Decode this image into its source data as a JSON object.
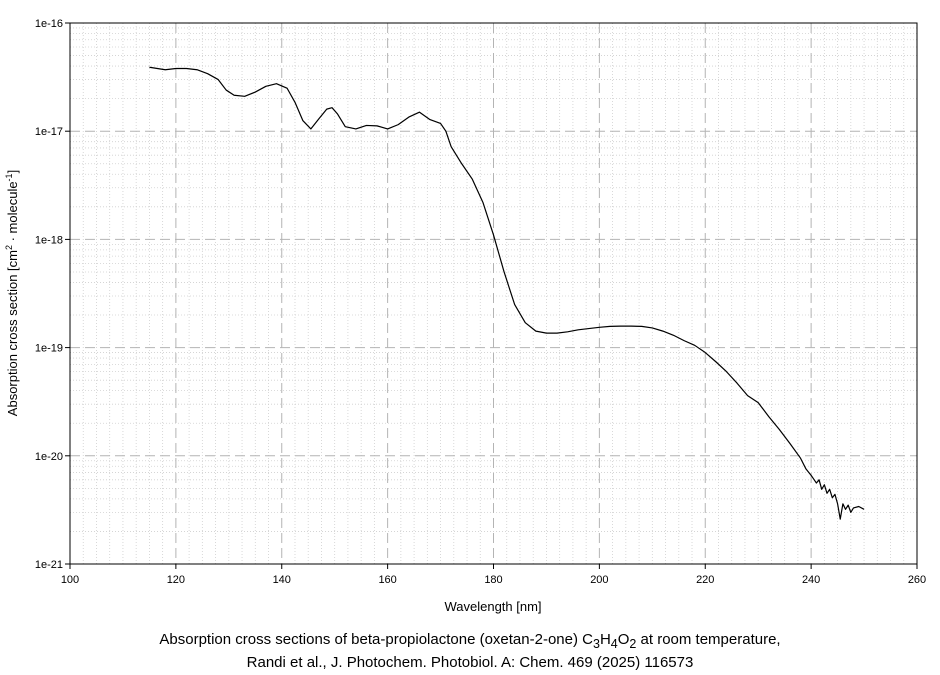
{
  "chart_data": {
    "type": "line",
    "title": "",
    "xlabel": "Wavelength [nm]",
    "ylabel": {
      "prefix": "Absorption cross section [cm",
      "sup1": "2",
      "middle": " · molecule",
      "sup2": "-1",
      "suffix": "]"
    },
    "xlim": [
      100,
      260
    ],
    "ylim": [
      1e-21,
      1e-16
    ],
    "yscale": "log",
    "grid": true,
    "legend": "none",
    "x_ticks": [
      100,
      120,
      140,
      160,
      180,
      200,
      220,
      240,
      260
    ],
    "y_ticks": [
      {
        "value": 1e-21,
        "label": "1e-21"
      },
      {
        "value": 1e-20,
        "label": "1e-20"
      },
      {
        "value": 1e-19,
        "label": "1e-19"
      },
      {
        "value": 1e-18,
        "label": "1e-18"
      },
      {
        "value": 1e-17,
        "label": "1e-17"
      },
      {
        "value": 1e-16,
        "label": "1e-16"
      }
    ],
    "series": [
      {
        "color": "#000000",
        "points": [
          [
            115,
            3.9e-17
          ],
          [
            118,
            3.7e-17
          ],
          [
            120,
            3.8e-17
          ],
          [
            122,
            3.8e-17
          ],
          [
            124,
            3.7e-17
          ],
          [
            126,
            3.4e-17
          ],
          [
            128,
            3e-17
          ],
          [
            129.5,
            2.4e-17
          ],
          [
            131,
            2.15e-17
          ],
          [
            133,
            2.1e-17
          ],
          [
            135,
            2.3e-17
          ],
          [
            137,
            2.6e-17
          ],
          [
            139,
            2.75e-17
          ],
          [
            141,
            2.5e-17
          ],
          [
            142.5,
            1.85e-17
          ],
          [
            144,
            1.25e-17
          ],
          [
            145.5,
            1.05e-17
          ],
          [
            147,
            1.3e-17
          ],
          [
            148.5,
            1.6e-17
          ],
          [
            149.5,
            1.65e-17
          ],
          [
            150.5,
            1.45e-17
          ],
          [
            152,
            1.1e-17
          ],
          [
            154,
            1.05e-17
          ],
          [
            156,
            1.13e-17
          ],
          [
            158,
            1.12e-17
          ],
          [
            160,
            1.05e-17
          ],
          [
            162,
            1.15e-17
          ],
          [
            164,
            1.35e-17
          ],
          [
            166,
            1.5e-17
          ],
          [
            168,
            1.28e-17
          ],
          [
            170,
            1.18e-17
          ],
          [
            171,
            1e-17
          ],
          [
            172,
            7.2e-18
          ],
          [
            174,
            5e-18
          ],
          [
            176,
            3.6e-18
          ],
          [
            178,
            2.2e-18
          ],
          [
            180,
            1.1e-18
          ],
          [
            182,
            5e-19
          ],
          [
            184,
            2.5e-19
          ],
          [
            186,
            1.7e-19
          ],
          [
            188,
            1.42e-19
          ],
          [
            190,
            1.36e-19
          ],
          [
            192,
            1.36e-19
          ],
          [
            194,
            1.4e-19
          ],
          [
            196,
            1.46e-19
          ],
          [
            198,
            1.5e-19
          ],
          [
            200,
            1.54e-19
          ],
          [
            202,
            1.57e-19
          ],
          [
            204,
            1.58e-19
          ],
          [
            206,
            1.58e-19
          ],
          [
            208,
            1.57e-19
          ],
          [
            210,
            1.52e-19
          ],
          [
            212,
            1.42e-19
          ],
          [
            214,
            1.3e-19
          ],
          [
            216,
            1.16e-19
          ],
          [
            218,
            1.05e-19
          ],
          [
            220,
            9e-20
          ],
          [
            222,
            7.4e-20
          ],
          [
            224,
            6e-20
          ],
          [
            226,
            4.7e-20
          ],
          [
            228,
            3.6e-20
          ],
          [
            230,
            3.1e-20
          ],
          [
            232,
            2.3e-20
          ],
          [
            234,
            1.75e-20
          ],
          [
            236,
            1.3e-20
          ],
          [
            238,
            9.5e-21
          ],
          [
            239,
            7.6e-21
          ],
          [
            240,
            6.6e-21
          ],
          [
            241,
            5.6e-21
          ],
          [
            241.5,
            6e-21
          ],
          [
            242,
            4.9e-21
          ],
          [
            242.5,
            5.4e-21
          ],
          [
            243,
            4.5e-21
          ],
          [
            243.5,
            4.9e-21
          ],
          [
            244,
            4.1e-21
          ],
          [
            244.5,
            4.4e-21
          ],
          [
            245,
            3.6e-21
          ],
          [
            245.5,
            2.6e-21
          ],
          [
            246,
            3.6e-21
          ],
          [
            246.5,
            3.2e-21
          ],
          [
            247,
            3.5e-21
          ],
          [
            247.5,
            3e-21
          ],
          [
            248,
            3.3e-21
          ],
          [
            249,
            3.4e-21
          ],
          [
            250,
            3.2e-21
          ]
        ]
      }
    ]
  },
  "caption": {
    "line1_prefix": "Absorption cross sections of beta-propiolactone (oxetan-2-one) C",
    "f1": "3",
    "f1_el": "H",
    "f2": "4",
    "f2_el": "O",
    "f3": "2",
    "line1_suffix": " at room temperature,",
    "line2": "Randi et al., J. Photochem. Photobiol. A: Chem. 469 (2025) 116573"
  }
}
